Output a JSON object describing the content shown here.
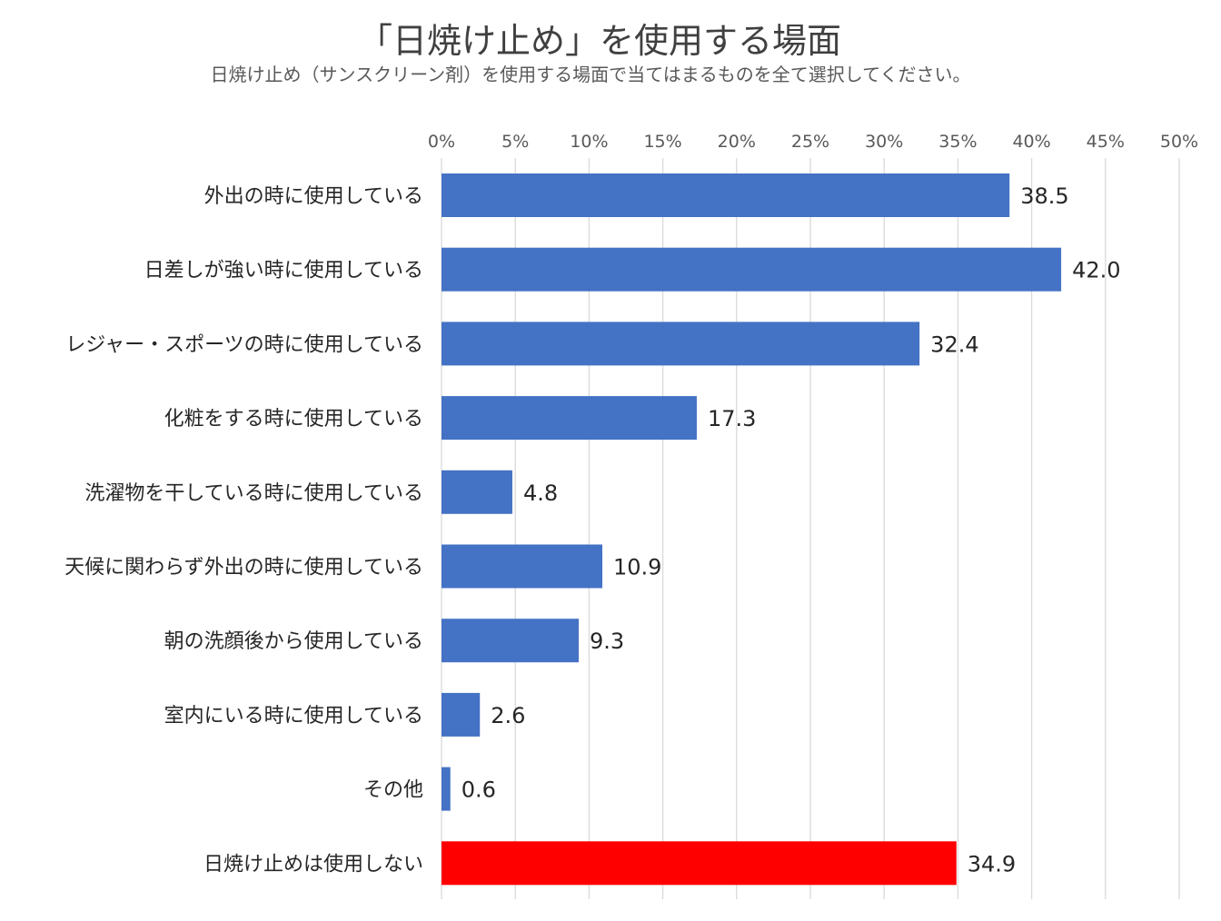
{
  "title": "「日焼け止め」を使用する場面",
  "subtitle": "日焼け止め（サンスクリーン剤）を使用する場面で当てはまるものを全て選択してください。",
  "chart_data": {
    "type": "bar",
    "orientation": "horizontal",
    "title": "「日焼け止め」を使用する場面",
    "subtitle": "日焼け止め（サンスクリーン剤）を使用する場面で当てはまるものを全て選択してください。",
    "categories": [
      "外出の時に使用している",
      "日差しが強い時に使用している",
      "レジャー・スポーツの時に使用している",
      "化粧をする時に使用している",
      "洗濯物を干している時に使用している",
      "天候に関わらず外出の時に使用している",
      "朝の洗顔後から使用している",
      "室内にいる時に使用している",
      "その他",
      "日焼け止めは使用しない"
    ],
    "values": [
      38.5,
      42.0,
      32.4,
      17.3,
      4.8,
      10.9,
      9.3,
      2.6,
      0.6,
      34.9
    ],
    "data_labels": [
      "38.5",
      "42.0",
      "32.4",
      "17.3",
      "4.8",
      "10.9",
      "9.3",
      "2.6",
      "0.6",
      "34.9"
    ],
    "bar_colors": [
      "#4472C4",
      "#4472C4",
      "#4472C4",
      "#4472C4",
      "#4472C4",
      "#4472C4",
      "#4472C4",
      "#4472C4",
      "#4472C4",
      "#FF0000"
    ],
    "xlim": [
      0,
      50
    ],
    "xticks": [
      0,
      5,
      10,
      15,
      20,
      25,
      30,
      35,
      40,
      45,
      50
    ],
    "xtick_labels": [
      "0%",
      "5%",
      "10%",
      "15%",
      "20%",
      "25%",
      "30%",
      "35%",
      "40%",
      "45%",
      "50%"
    ],
    "xaxis_position": "top",
    "grid": true,
    "xlabel": "",
    "ylabel": ""
  }
}
